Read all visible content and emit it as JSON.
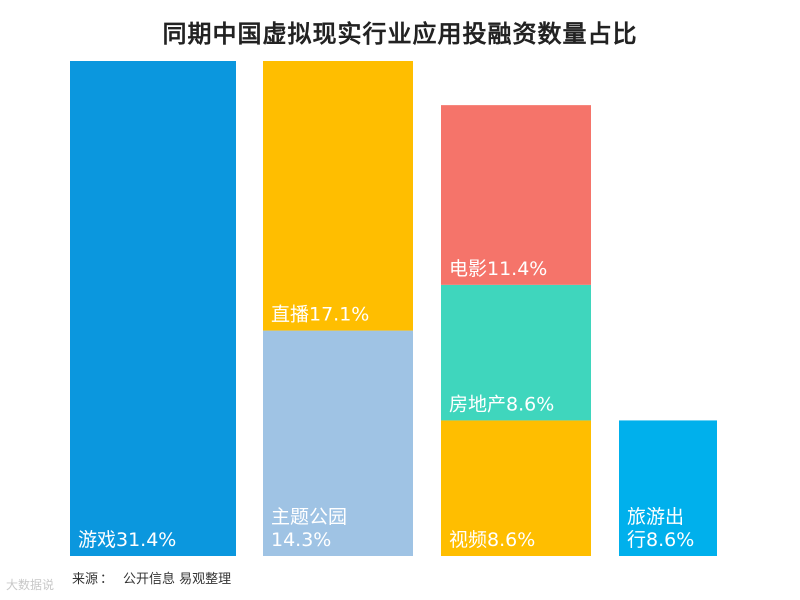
{
  "chart_data": {
    "type": "bar",
    "subtype": "stacked-columns",
    "title": "同期中国虚拟现实行业应用投融资数量占比",
    "xlabel": "",
    "ylabel": "",
    "ylim": [
      0,
      31.4
    ],
    "columns": [
      {
        "segments": [
          {
            "label_lines": [
              "游戏31.4%"
            ],
            "value": 31.4,
            "color": "#0b97de"
          }
        ]
      },
      {
        "segments": [
          {
            "label_lines": [
              "主题公园",
              "14.3%"
            ],
            "value": 14.3,
            "color": "#9fc3e4"
          },
          {
            "label_lines": [
              "直播17.1%"
            ],
            "value": 17.1,
            "color": "#ffbe00"
          }
        ]
      },
      {
        "segments": [
          {
            "label_lines": [
              "视频8.6%"
            ],
            "value": 8.6,
            "color": "#ffbe00"
          },
          {
            "label_lines": [
              "房地产8.6%"
            ],
            "value": 8.6,
            "color": "#3fd6bd"
          },
          {
            "label_lines": [
              "电影11.4%"
            ],
            "value": 11.4,
            "color": "#f5746a"
          }
        ]
      },
      {
        "segments": [
          {
            "label_lines": [
              "旅游出",
              "行8.6%"
            ],
            "value": 8.6,
            "color": "#00b0ec"
          }
        ]
      }
    ]
  },
  "source": {
    "label": "来源",
    "text": "公开信息 易观整理"
  },
  "watermark": {
    "text": "大数据说"
  }
}
